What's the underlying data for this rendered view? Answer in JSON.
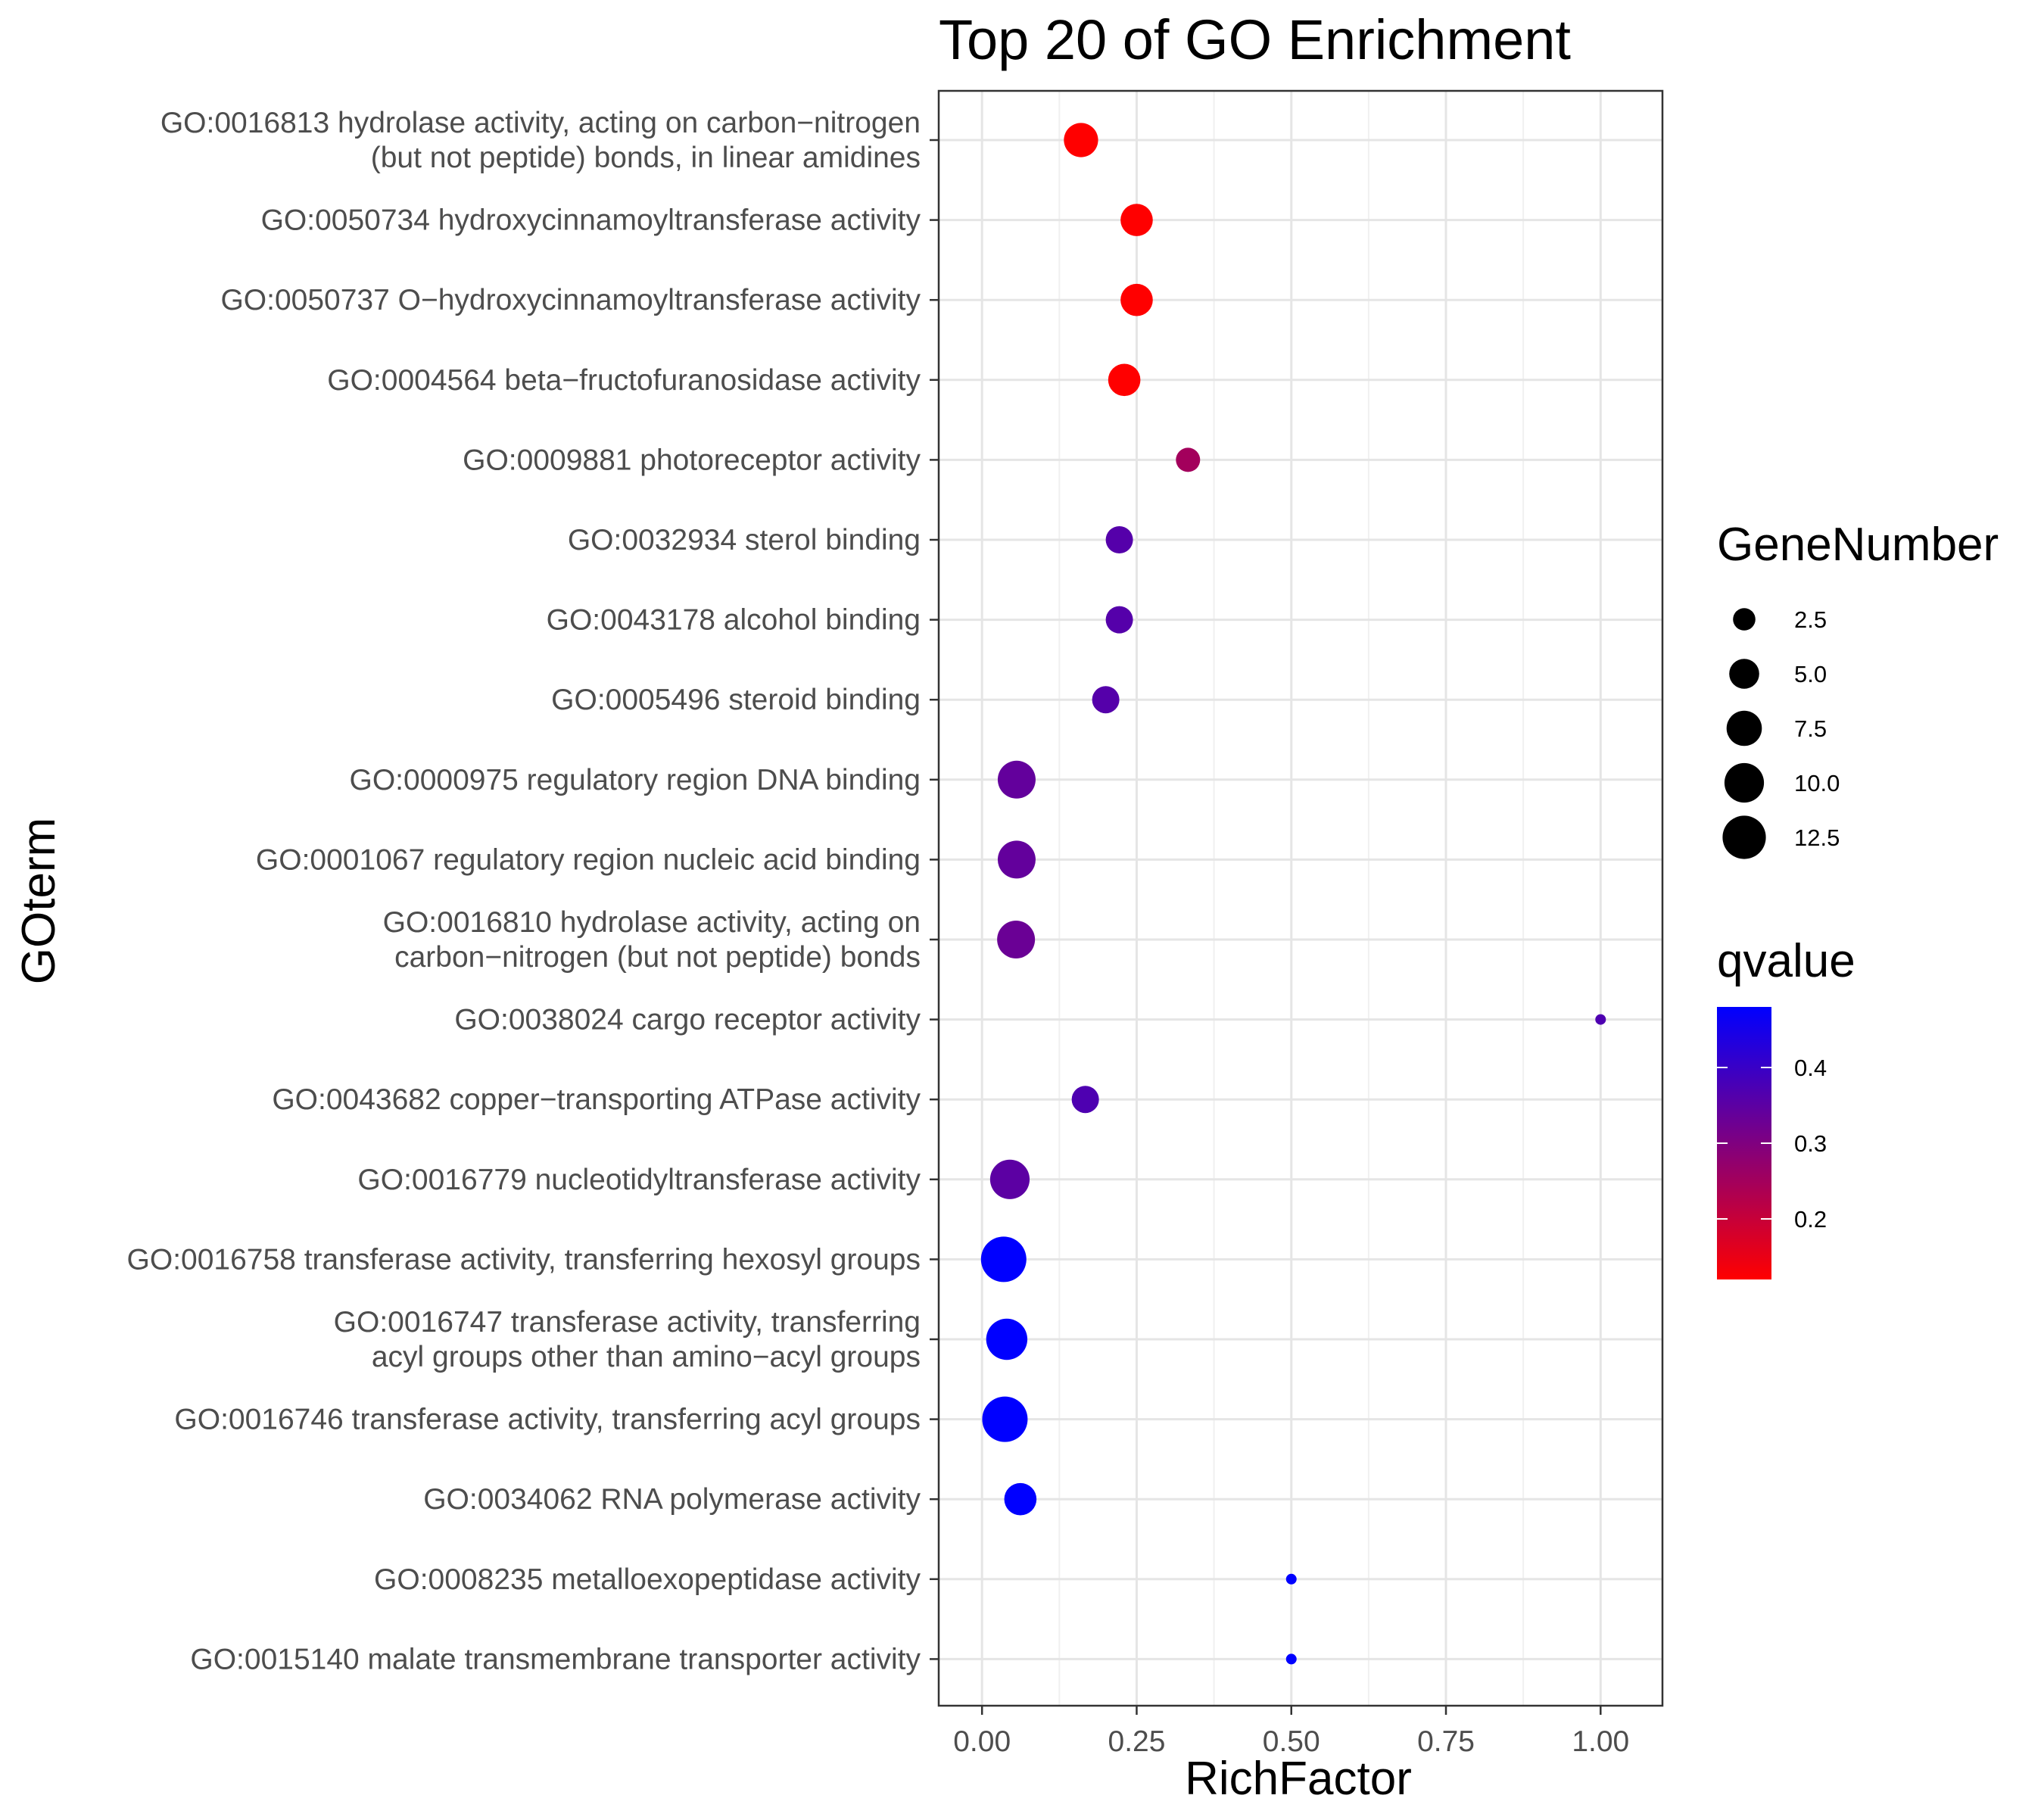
{
  "chart_data": {
    "type": "scatter",
    "title": "Top 20 of GO Enrichment",
    "xlabel": "RichFactor",
    "ylabel": "GOterm",
    "xlim": [
      -0.07,
      1.1
    ],
    "x_ticks": [
      "0.00",
      "0.25",
      "0.50",
      "0.75",
      "1.00"
    ],
    "grid": true,
    "legend_position": "right",
    "size_legend": {
      "title": "GeneNumber",
      "entries": [
        "2.5",
        "5.0",
        "7.5",
        "10.0",
        "12.5"
      ]
    },
    "color_legend": {
      "title": "qvalue",
      "ticks": [
        "0.4",
        "0.3",
        "0.2"
      ],
      "range": [
        0.12,
        0.48
      ],
      "low_color": "#FF0000",
      "high_color": "#0000FF"
    },
    "terms": [
      {
        "label": [
          "GO:0016813 hydrolase activity, acting on carbon−nitrogen",
          "(but not peptide) bonds, in linear amidines"
        ],
        "rich_factor": 0.16,
        "gene_number": 7,
        "qvalue": 0.12
      },
      {
        "label": [
          "GO:0050734 hydroxycinnamoyltransferase activity"
        ],
        "rich_factor": 0.25,
        "gene_number": 6,
        "qvalue": 0.12
      },
      {
        "label": [
          "GO:0050737 O−hydroxycinnamoyltransferase activity"
        ],
        "rich_factor": 0.25,
        "gene_number": 6,
        "qvalue": 0.12
      },
      {
        "label": [
          "GO:0004564 beta−fructofuranosidase activity"
        ],
        "rich_factor": 0.23,
        "gene_number": 6,
        "qvalue": 0.12
      },
      {
        "label": [
          "GO:0009881 photoreceptor activity"
        ],
        "rich_factor": 0.333,
        "gene_number": 3,
        "qvalue": 0.25
      },
      {
        "label": [
          "GO:0032934 sterol binding"
        ],
        "rich_factor": 0.222,
        "gene_number": 4,
        "qvalue": 0.36
      },
      {
        "label": [
          "GO:0043178 alcohol binding"
        ],
        "rich_factor": 0.222,
        "gene_number": 4,
        "qvalue": 0.36
      },
      {
        "label": [
          "GO:0005496 steroid binding"
        ],
        "rich_factor": 0.2,
        "gene_number": 4,
        "qvalue": 0.36
      },
      {
        "label": [
          "GO:0000975 regulatory region DNA binding"
        ],
        "rich_factor": 0.056,
        "gene_number": 9,
        "qvalue": 0.34
      },
      {
        "label": [
          "GO:0001067 regulatory region nucleic acid binding"
        ],
        "rich_factor": 0.056,
        "gene_number": 9,
        "qvalue": 0.34
      },
      {
        "label": [
          "GO:0016810 hydrolase activity, acting on",
          "carbon−nitrogen (but not peptide) bonds"
        ],
        "rich_factor": 0.055,
        "gene_number": 9,
        "qvalue": 0.33
      },
      {
        "label": [
          "GO:0038024 cargo receptor activity"
        ],
        "rich_factor": 1.0,
        "gene_number": 1,
        "qvalue": 0.37
      },
      {
        "label": [
          "GO:0043682 copper−transporting ATPase activity"
        ],
        "rich_factor": 0.167,
        "gene_number": 4,
        "qvalue": 0.37
      },
      {
        "label": [
          "GO:0016779 nucleotidyltransferase activity"
        ],
        "rich_factor": 0.045,
        "gene_number": 10,
        "qvalue": 0.35
      },
      {
        "label": [
          "GO:0016758 transferase activity, transferring hexosyl groups"
        ],
        "rich_factor": 0.035,
        "gene_number": 14,
        "qvalue": 0.48
      },
      {
        "label": [
          "GO:0016747 transferase activity, transferring",
          "acyl groups other than amino−acyl groups"
        ],
        "rich_factor": 0.04,
        "gene_number": 11,
        "qvalue": 0.48
      },
      {
        "label": [
          "GO:0016746 transferase activity, transferring acyl groups"
        ],
        "rich_factor": 0.037,
        "gene_number": 14,
        "qvalue": 0.48
      },
      {
        "label": [
          "GO:0034062 RNA polymerase activity"
        ],
        "rich_factor": 0.062,
        "gene_number": 6,
        "qvalue": 0.48
      },
      {
        "label": [
          "GO:0008235 metalloexopeptidase activity"
        ],
        "rich_factor": 0.5,
        "gene_number": 1,
        "qvalue": 0.48
      },
      {
        "label": [
          "GO:0015140 malate transmembrane transporter activity"
        ],
        "rich_factor": 0.5,
        "gene_number": 1,
        "qvalue": 0.48
      }
    ]
  }
}
